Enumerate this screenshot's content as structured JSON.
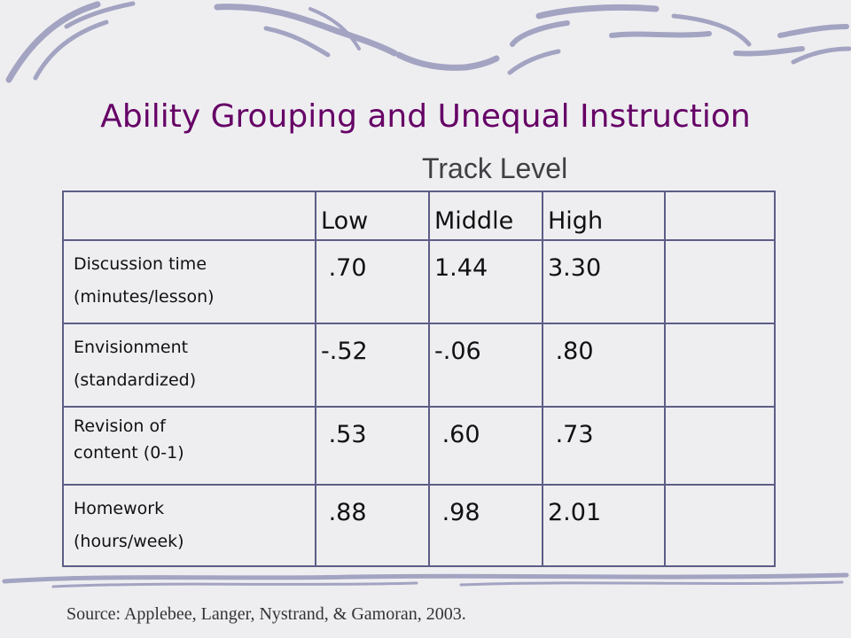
{
  "slide": {
    "title": "Ability Grouping and Unequal Instruction",
    "source": "Source: Applebee, Langer, Nystrand, & Gamoran, 2003."
  },
  "table": {
    "caption": "Track Level",
    "headers": [
      "",
      "Low",
      "Middle",
      "High",
      ""
    ],
    "rows": [
      {
        "label_line1": "Discussion time",
        "label_line2": "(minutes/lesson)",
        "low": ".70",
        "middle": "1.44",
        "high": "3.30"
      },
      {
        "label_line1": "Envisionment",
        "label_line2": "(standardized)",
        "low": "-.52",
        "middle": "-.06",
        "high": ".80"
      },
      {
        "label_line1": "Revision of",
        "label_line2": "content (0-1)",
        "low": ".53",
        "middle": ".60",
        "high": ".73"
      },
      {
        "label_line1": "Homework",
        "label_line2": "(hours/week)",
        "low": ".88",
        "middle": ".98",
        "high": "2.01"
      }
    ]
  },
  "colors": {
    "title": "#660066",
    "border": "#5d5d86",
    "background": "#eeeef1",
    "decoration": "#a3a3c2"
  }
}
